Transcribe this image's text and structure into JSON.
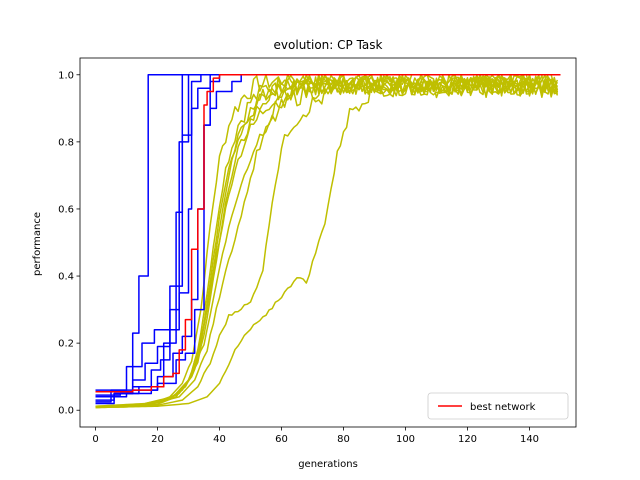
{
  "chart_data": {
    "type": "line",
    "title": "evolution: CP Task",
    "xlabel": "generations",
    "ylabel": "performance",
    "xlim": [
      -5,
      155
    ],
    "ylim": [
      -0.05,
      1.05
    ],
    "xticks": [
      0,
      20,
      40,
      60,
      80,
      100,
      120,
      140
    ],
    "yticks": [
      0.0,
      0.2,
      0.4,
      0.6,
      0.8,
      1.0
    ],
    "xtick_labels": [
      "0",
      "20",
      "40",
      "60",
      "80",
      "100",
      "120",
      "140"
    ],
    "ytick_labels": [
      "0.0",
      "0.2",
      "0.4",
      "0.6",
      "0.8",
      "1.0"
    ],
    "grid": false,
    "legend": {
      "location": "lower-right",
      "entries": [
        "best network"
      ]
    },
    "series": [
      {
        "color": "#bfbf00",
        "style": "noisy-plateau",
        "points": [
          [
            0,
            0.01
          ],
          [
            10,
            0.012
          ],
          [
            18,
            0.02
          ],
          [
            24,
            0.04
          ],
          [
            28,
            0.08
          ],
          [
            31,
            0.15
          ],
          [
            34,
            0.3
          ],
          [
            37,
            0.55
          ],
          [
            40,
            0.75
          ],
          [
            44,
            0.88
          ],
          [
            48,
            0.94
          ],
          [
            52,
            0.97
          ],
          [
            56,
            0.98
          ],
          [
            60,
            0.985
          ],
          [
            80,
            0.985
          ],
          [
            100,
            0.985
          ],
          [
            120,
            0.985
          ],
          [
            150,
            0.985
          ]
        ]
      },
      {
        "color": "#bfbf00",
        "style": "noisy-plateau",
        "points": [
          [
            0,
            0.008
          ],
          [
            10,
            0.01
          ],
          [
            20,
            0.018
          ],
          [
            26,
            0.04
          ],
          [
            30,
            0.09
          ],
          [
            33,
            0.18
          ],
          [
            36,
            0.35
          ],
          [
            39,
            0.55
          ],
          [
            42,
            0.72
          ],
          [
            46,
            0.85
          ],
          [
            50,
            0.92
          ],
          [
            55,
            0.96
          ],
          [
            60,
            0.975
          ],
          [
            80,
            0.975
          ],
          [
            100,
            0.975
          ],
          [
            150,
            0.975
          ]
        ]
      },
      {
        "color": "#bfbf00",
        "style": "noisy-plateau",
        "points": [
          [
            0,
            0.01
          ],
          [
            12,
            0.015
          ],
          [
            22,
            0.025
          ],
          [
            28,
            0.06
          ],
          [
            32,
            0.12
          ],
          [
            35,
            0.25
          ],
          [
            38,
            0.42
          ],
          [
            41,
            0.6
          ],
          [
            45,
            0.78
          ],
          [
            49,
            0.88
          ],
          [
            54,
            0.93
          ],
          [
            58,
            0.96
          ],
          [
            62,
            0.97
          ],
          [
            80,
            0.97
          ],
          [
            100,
            0.97
          ],
          [
            150,
            0.97
          ]
        ]
      },
      {
        "color": "#bfbf00",
        "style": "noisy-plateau",
        "points": [
          [
            0,
            0.009
          ],
          [
            14,
            0.015
          ],
          [
            22,
            0.03
          ],
          [
            27,
            0.05
          ],
          [
            31,
            0.1
          ],
          [
            34,
            0.2
          ],
          [
            37,
            0.38
          ],
          [
            40,
            0.58
          ],
          [
            43,
            0.73
          ],
          [
            47,
            0.84
          ],
          [
            51,
            0.9
          ],
          [
            55,
            0.94
          ],
          [
            60,
            0.96
          ],
          [
            80,
            0.97
          ],
          [
            150,
            0.97
          ]
        ]
      },
      {
        "color": "#bfbf00",
        "style": "noisy-plateau",
        "points": [
          [
            0,
            0.01
          ],
          [
            15,
            0.018
          ],
          [
            24,
            0.035
          ],
          [
            29,
            0.07
          ],
          [
            33,
            0.14
          ],
          [
            36,
            0.27
          ],
          [
            39,
            0.45
          ],
          [
            42,
            0.62
          ],
          [
            46,
            0.77
          ],
          [
            50,
            0.86
          ],
          [
            54,
            0.92
          ],
          [
            58,
            0.95
          ],
          [
            63,
            0.97
          ],
          [
            80,
            0.975
          ],
          [
            150,
            0.975
          ]
        ]
      },
      {
        "color": "#bfbf00",
        "style": "noisy-plateau",
        "points": [
          [
            0,
            0.012
          ],
          [
            16,
            0.02
          ],
          [
            25,
            0.04
          ],
          [
            30,
            0.09
          ],
          [
            33,
            0.17
          ],
          [
            36,
            0.3
          ],
          [
            39,
            0.46
          ],
          [
            42,
            0.6
          ],
          [
            45,
            0.72
          ],
          [
            49,
            0.82
          ],
          [
            53,
            0.88
          ],
          [
            57,
            0.93
          ],
          [
            61,
            0.95
          ],
          [
            66,
            0.965
          ],
          [
            80,
            0.97
          ],
          [
            150,
            0.97
          ]
        ]
      },
      {
        "color": "#bfbf00",
        "style": "noisy-plateau",
        "points": [
          [
            0,
            0.01
          ],
          [
            18,
            0.02
          ],
          [
            26,
            0.045
          ],
          [
            31,
            0.1
          ],
          [
            35,
            0.2
          ],
          [
            38,
            0.33
          ],
          [
            41,
            0.47
          ],
          [
            44,
            0.58
          ],
          [
            48,
            0.7
          ],
          [
            52,
            0.8
          ],
          [
            56,
            0.87
          ],
          [
            60,
            0.92
          ],
          [
            65,
            0.95
          ],
          [
            70,
            0.965
          ],
          [
            80,
            0.97
          ],
          [
            150,
            0.97
          ]
        ]
      },
      {
        "color": "#bfbf00",
        "style": "noisy-plateau",
        "points": [
          [
            0,
            0.009
          ],
          [
            18,
            0.018
          ],
          [
            27,
            0.04
          ],
          [
            32,
            0.09
          ],
          [
            36,
            0.18
          ],
          [
            39,
            0.3
          ],
          [
            42,
            0.42
          ],
          [
            45,
            0.51
          ],
          [
            48,
            0.62
          ],
          [
            52,
            0.76
          ],
          [
            56,
            0.85
          ],
          [
            60,
            0.9
          ],
          [
            64,
            0.93
          ],
          [
            70,
            0.955
          ],
          [
            80,
            0.965
          ],
          [
            150,
            0.965
          ]
        ]
      },
      {
        "color": "#bfbf00",
        "style": "noisy-plateau",
        "points": [
          [
            0,
            0.008
          ],
          [
            20,
            0.015
          ],
          [
            28,
            0.03
          ],
          [
            33,
            0.07
          ],
          [
            37,
            0.14
          ],
          [
            40,
            0.22
          ],
          [
            43,
            0.28
          ],
          [
            46,
            0.3
          ],
          [
            50,
            0.32
          ],
          [
            54,
            0.42
          ],
          [
            57,
            0.62
          ],
          [
            60,
            0.78
          ],
          [
            63,
            0.85
          ],
          [
            68,
            0.9
          ],
          [
            73,
            0.93
          ],
          [
            80,
            0.96
          ],
          [
            150,
            0.96
          ]
        ]
      },
      {
        "color": "#bfbf00",
        "style": "noisy-plateau",
        "points": [
          [
            0,
            0.008
          ],
          [
            20,
            0.012
          ],
          [
            30,
            0.02
          ],
          [
            36,
            0.04
          ],
          [
            40,
            0.08
          ],
          [
            44,
            0.16
          ],
          [
            48,
            0.22
          ],
          [
            52,
            0.26
          ],
          [
            55,
            0.28
          ],
          [
            58,
            0.32
          ],
          [
            62,
            0.36
          ],
          [
            65,
            0.4
          ],
          [
            68,
            0.38
          ],
          [
            70,
            0.44
          ],
          [
            72,
            0.5
          ],
          [
            74,
            0.56
          ],
          [
            76,
            0.66
          ],
          [
            78,
            0.76
          ],
          [
            80,
            0.84
          ],
          [
            83,
            0.9
          ],
          [
            87,
            0.94
          ],
          [
            92,
            0.96
          ],
          [
            100,
            0.965
          ],
          [
            150,
            0.965
          ]
        ]
      },
      {
        "color": "#0000ff",
        "style": "step",
        "points": [
          [
            0,
            0.045
          ],
          [
            8,
            0.05
          ],
          [
            12,
            0.23
          ],
          [
            14,
            0.4
          ],
          [
            17,
            1.0
          ],
          [
            150,
            1.0
          ]
        ]
      },
      {
        "color": "#0000ff",
        "style": "step",
        "points": [
          [
            0,
            0.04
          ],
          [
            10,
            0.05
          ],
          [
            18,
            0.06
          ],
          [
            20,
            0.1
          ],
          [
            22,
            0.2
          ],
          [
            24,
            0.37
          ],
          [
            26,
            0.59
          ],
          [
            28,
            1.0
          ],
          [
            150,
            1.0
          ]
        ]
      },
      {
        "color": "#0000ff",
        "style": "step",
        "points": [
          [
            0,
            0.03
          ],
          [
            6,
            0.05
          ],
          [
            12,
            0.09
          ],
          [
            16,
            0.14
          ],
          [
            20,
            0.19
          ],
          [
            24,
            0.3
          ],
          [
            27,
            0.8
          ],
          [
            30,
            1.0
          ],
          [
            150,
            1.0
          ]
        ]
      },
      {
        "color": "#0000ff",
        "style": "step",
        "points": [
          [
            0,
            0.025
          ],
          [
            5,
            0.06
          ],
          [
            10,
            0.13
          ],
          [
            15,
            0.2
          ],
          [
            19,
            0.24
          ],
          [
            23,
            0.24
          ],
          [
            27,
            0.35
          ],
          [
            30,
            0.6
          ],
          [
            31,
            0.98
          ],
          [
            34,
            1.0
          ],
          [
            150,
            1.0
          ]
        ]
      },
      {
        "color": "#0000ff",
        "style": "step",
        "points": [
          [
            0,
            0.02
          ],
          [
            6,
            0.05
          ],
          [
            14,
            0.06
          ],
          [
            20,
            0.08
          ],
          [
            26,
            0.15
          ],
          [
            29,
            0.17
          ],
          [
            32,
            0.3
          ],
          [
            35,
            0.85
          ],
          [
            37,
            0.9
          ],
          [
            39,
            0.95
          ],
          [
            44,
            0.98
          ],
          [
            47,
            1.0
          ],
          [
            150,
            1.0
          ]
        ]
      },
      {
        "color": "#0000ff",
        "style": "step",
        "points": [
          [
            0,
            0.055
          ],
          [
            12,
            0.07
          ],
          [
            18,
            0.12
          ],
          [
            21,
            0.15
          ],
          [
            24,
            0.2
          ],
          [
            26,
            0.37
          ],
          [
            28,
            0.82
          ],
          [
            31,
            0.9
          ],
          [
            33,
            0.96
          ],
          [
            37,
            1.0
          ],
          [
            150,
            1.0
          ]
        ]
      },
      {
        "color": "#0000ff",
        "style": "step",
        "points": [
          [
            0,
            0.06
          ],
          [
            14,
            0.07
          ],
          [
            22,
            0.1
          ],
          [
            25,
            0.17
          ],
          [
            28,
            0.22
          ],
          [
            31,
            0.33
          ],
          [
            33,
            0.6
          ],
          [
            35,
            0.85
          ],
          [
            37,
            0.98
          ],
          [
            40,
            1.0
          ],
          [
            150,
            1.0
          ]
        ]
      },
      {
        "color": "#ff0000",
        "name": "best network",
        "style": "step",
        "points": [
          [
            0,
            0.055
          ],
          [
            12,
            0.06
          ],
          [
            18,
            0.07
          ],
          [
            22,
            0.1
          ],
          [
            25,
            0.11
          ],
          [
            27,
            0.18
          ],
          [
            29,
            0.27
          ],
          [
            31,
            0.48
          ],
          [
            33,
            0.6
          ],
          [
            35,
            0.91
          ],
          [
            36,
            0.95
          ],
          [
            38,
            0.99
          ],
          [
            40,
            1.0
          ],
          [
            150,
            1.0
          ]
        ]
      }
    ]
  }
}
